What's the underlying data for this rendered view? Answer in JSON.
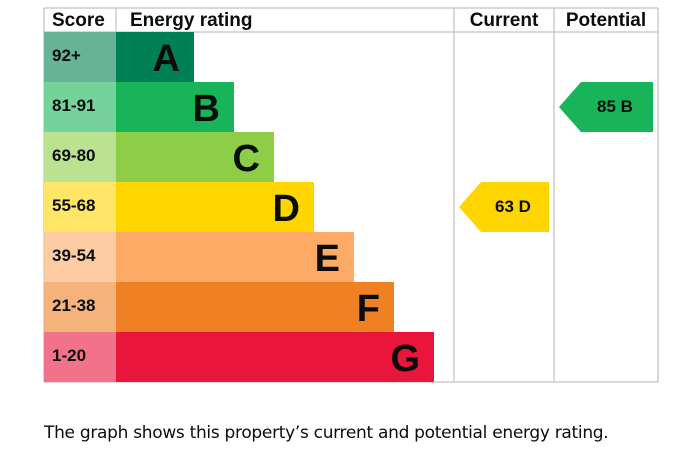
{
  "chart_data": {
    "type": "bar",
    "headers": {
      "score": "Score",
      "rating": "Energy rating",
      "current": "Current",
      "potential": "Potential"
    },
    "bands": [
      {
        "letter": "A",
        "range": "92+",
        "color": "#008054",
        "light": "#66b398"
      },
      {
        "letter": "B",
        "range": "81-91",
        "color": "#19b459",
        "light": "#75d29b"
      },
      {
        "letter": "C",
        "range": "69-80",
        "color": "#8dce46",
        "light": "#bbe290"
      },
      {
        "letter": "D",
        "range": "55-68",
        "color": "#ffd500",
        "light": "#ffe666"
      },
      {
        "letter": "E",
        "range": "39-54",
        "color": "#fcaa65",
        "light": "#fdcca3"
      },
      {
        "letter": "F",
        "range": "21-38",
        "color": "#ef8023",
        "light": "#f5b37b"
      },
      {
        "letter": "G",
        "range": "1-20",
        "color": "#e9153b",
        "light": "#f27389"
      }
    ],
    "current": {
      "value": 63,
      "band": "D",
      "label": "63  D",
      "color": "#ffd500"
    },
    "potential": {
      "value": 85,
      "band": "B",
      "label": "85  B",
      "color": "#19b459"
    }
  },
  "caption": "The graph shows this property’s current and potential energy rating."
}
